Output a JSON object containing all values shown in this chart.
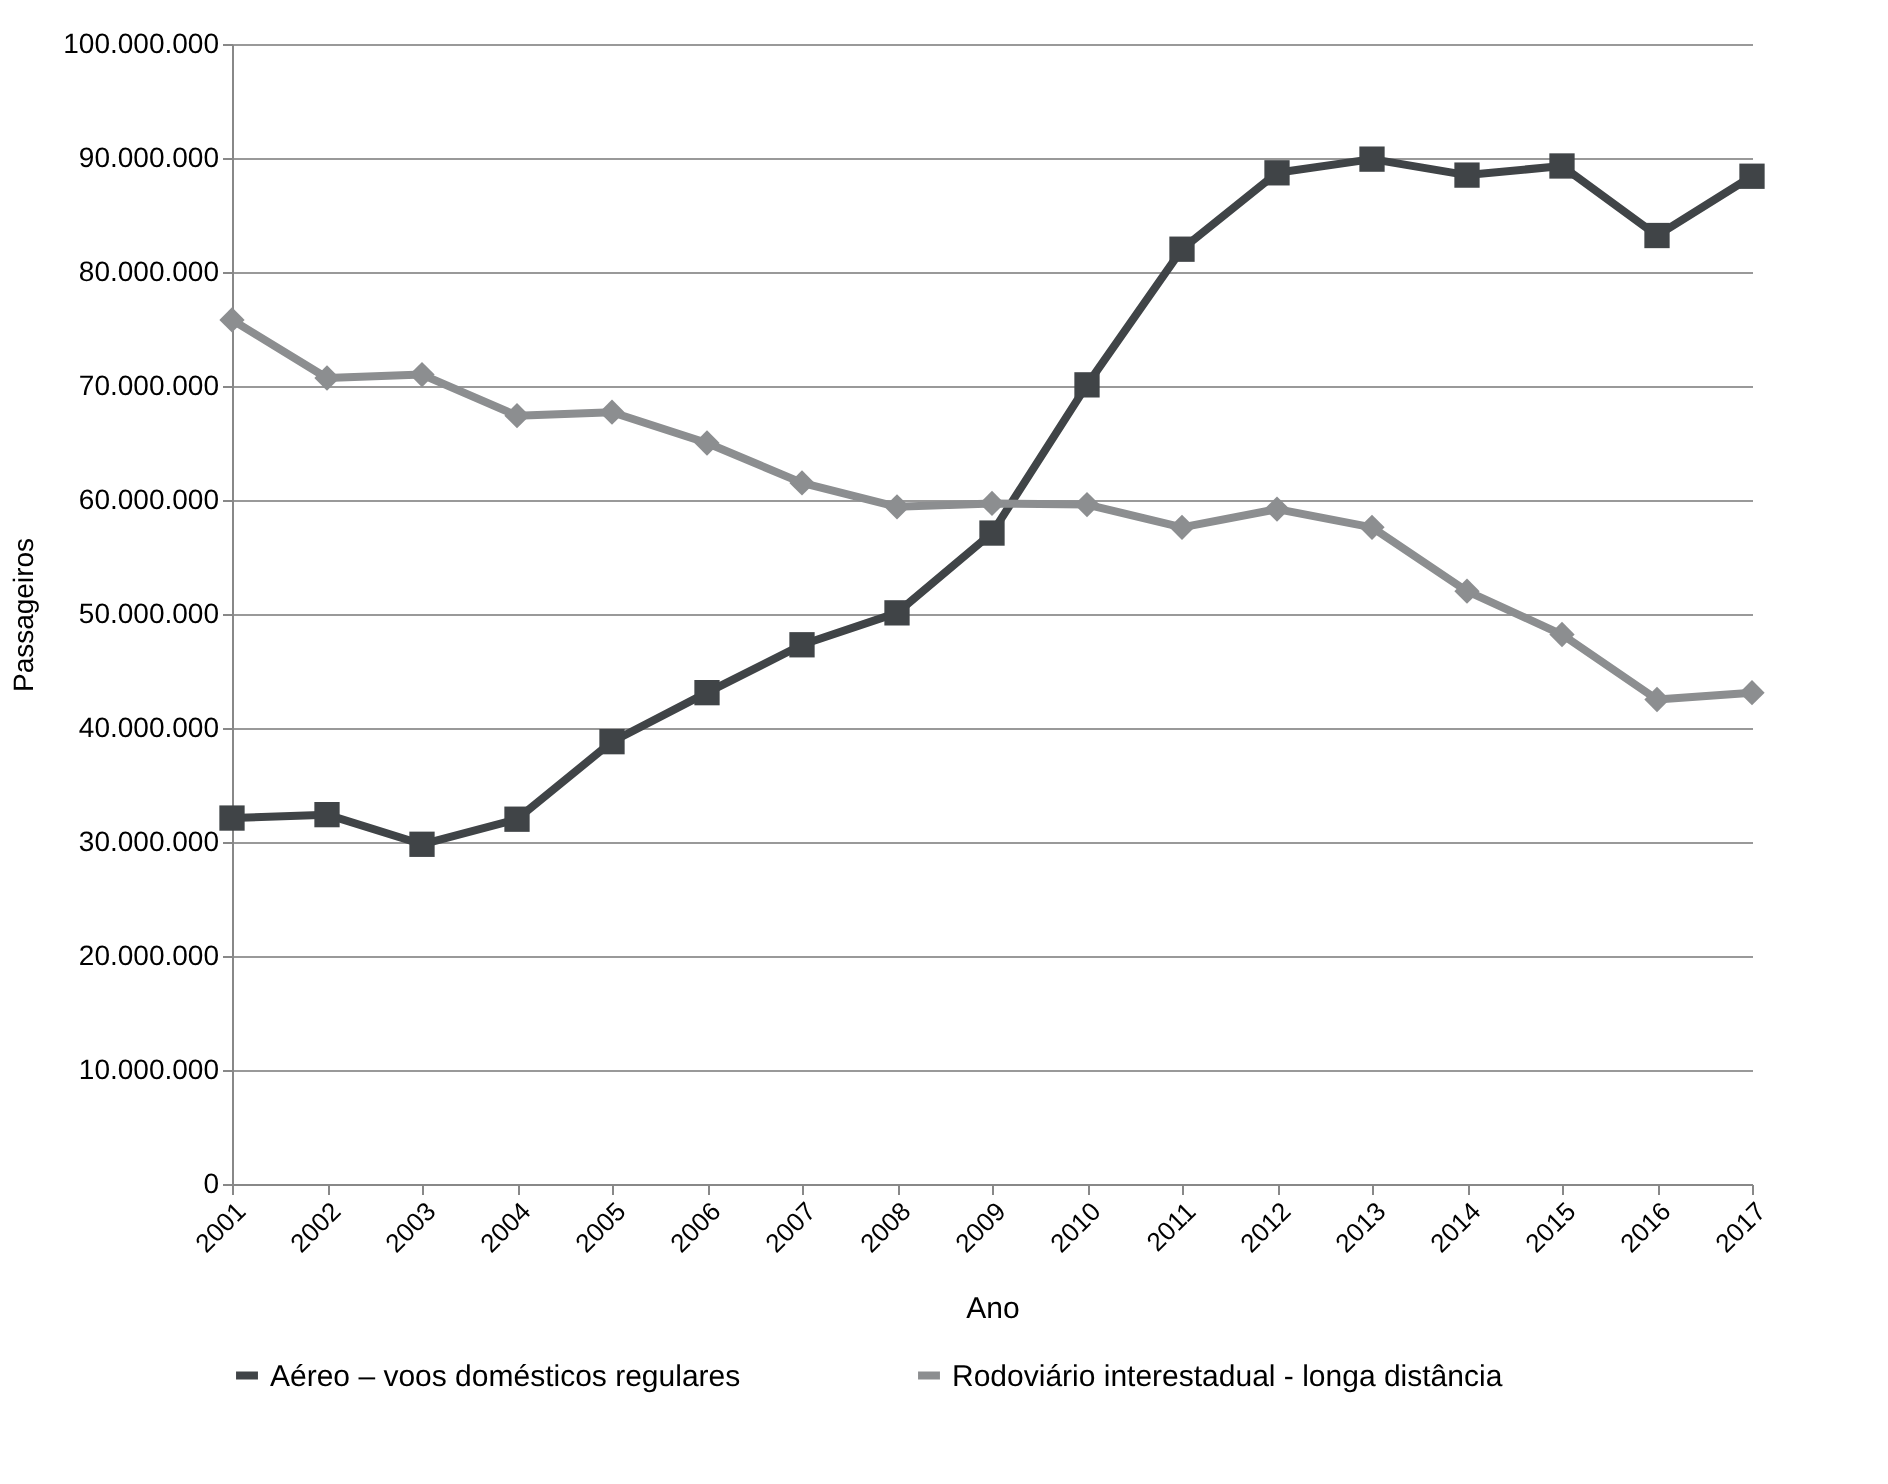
{
  "chart_data": {
    "type": "line",
    "xlabel": "Ano",
    "ylabel": "Passageiros",
    "categories": [
      "2001",
      "2002",
      "2003",
      "2004",
      "2005",
      "2006",
      "2007",
      "2008",
      "2009",
      "2010",
      "2011",
      "2012",
      "2013",
      "2014",
      "2015",
      "2016",
      "2017"
    ],
    "series": [
      {
        "name": "Aéreo – voos domésticos regulares",
        "color": "#404447",
        "marker": "square",
        "values": [
          32100000,
          32400000,
          29800000,
          32000000,
          38800000,
          43100000,
          47300000,
          50100000,
          57100000,
          70100000,
          82000000,
          88700000,
          89900000,
          88500000,
          89300000,
          83200000,
          88400000
        ]
      },
      {
        "name": "Rodoviário interestadual - longa distância",
        "color": "#8c8e90",
        "marker": "diamond",
        "values": [
          75800000,
          70700000,
          71000000,
          67400000,
          67700000,
          65000000,
          61500000,
          59400000,
          59700000,
          59600000,
          57600000,
          59200000,
          57600000,
          52000000,
          48200000,
          42500000,
          43100000
        ]
      }
    ],
    "ylim": [
      0,
      100000000
    ],
    "yticks": [
      {
        "value": 0,
        "label": "0"
      },
      {
        "value": 10000000,
        "label": "10.000.000"
      },
      {
        "value": 20000000,
        "label": "20.000.000"
      },
      {
        "value": 30000000,
        "label": "30.000.000"
      },
      {
        "value": 40000000,
        "label": "40.000.000"
      },
      {
        "value": 50000000,
        "label": "50.000.000"
      },
      {
        "value": 60000000,
        "label": "60.000.000"
      },
      {
        "value": 70000000,
        "label": "70.000.000"
      },
      {
        "value": 80000000,
        "label": "80.000.000"
      },
      {
        "value": 90000000,
        "label": "90.000.000"
      },
      {
        "value": 100000000,
        "label": "100.000.000"
      }
    ],
    "grid": "y",
    "legend": "bottom",
    "line_style": "solid"
  }
}
